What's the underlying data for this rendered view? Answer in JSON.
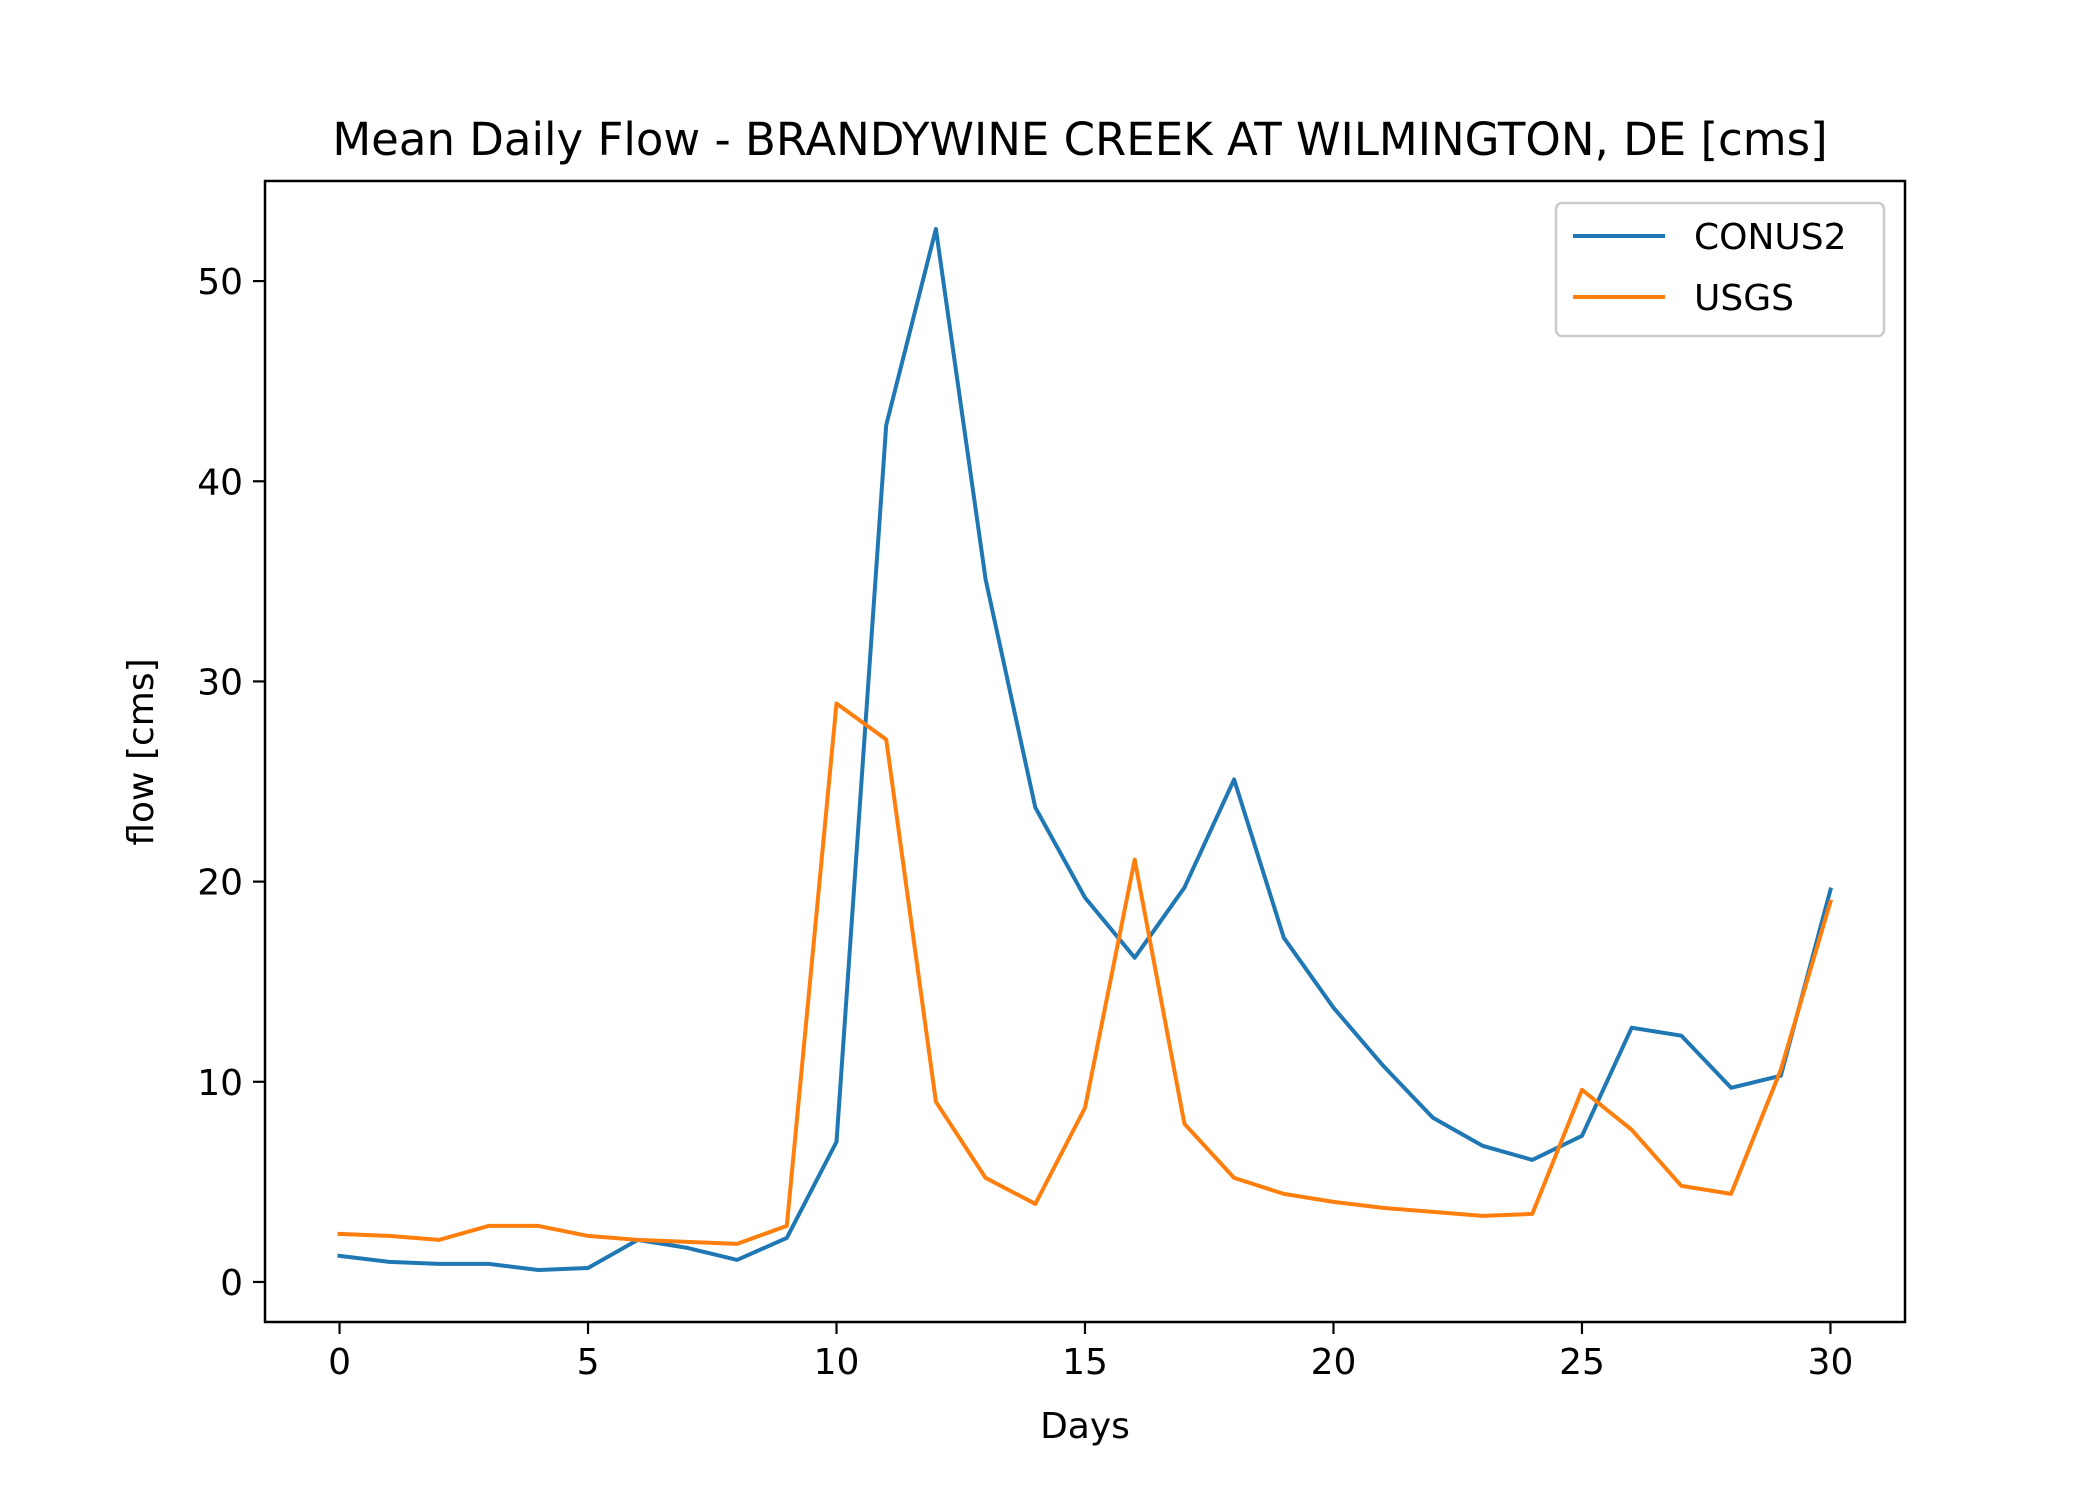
{
  "chart_data": {
    "type": "line",
    "title": "Mean Daily Flow - BRANDYWINE CREEK AT WILMINGTON, DE [cms]",
    "xlabel": "Days",
    "ylabel": "flow [cms]",
    "xlim": [
      -1.5,
      31.5
    ],
    "ylim": [
      -2,
      55
    ],
    "x_ticks": [
      0,
      5,
      10,
      15,
      20,
      25,
      30
    ],
    "y_ticks": [
      0,
      10,
      20,
      30,
      40,
      50
    ],
    "grid": false,
    "legend_position": "top-right",
    "x": [
      0,
      1,
      2,
      3,
      4,
      5,
      6,
      7,
      8,
      9,
      10,
      11,
      12,
      13,
      14,
      15,
      16,
      17,
      18,
      19,
      20,
      21,
      22,
      23,
      24,
      25,
      26,
      27,
      28,
      29,
      30
    ],
    "series": [
      {
        "name": "CONUS2",
        "color": "#1f77b4",
        "values": [
          1.3,
          1.0,
          0.9,
          0.9,
          0.6,
          0.7,
          2.1,
          1.7,
          1.1,
          2.2,
          7.0,
          42.8,
          52.6,
          35.1,
          23.7,
          19.2,
          16.2,
          19.7,
          25.1,
          17.2,
          13.7,
          10.8,
          8.2,
          6.8,
          6.1,
          7.3,
          12.7,
          12.3,
          9.7,
          10.3,
          19.6
        ]
      },
      {
        "name": "USGS",
        "color": "#ff7f0e",
        "values": [
          2.4,
          2.3,
          2.1,
          2.8,
          2.8,
          2.3,
          2.1,
          2.0,
          1.9,
          2.8,
          28.9,
          27.1,
          9.0,
          5.2,
          3.9,
          8.7,
          21.1,
          7.9,
          5.2,
          4.4,
          4.0,
          3.7,
          3.5,
          3.3,
          3.4,
          9.6,
          7.6,
          4.8,
          4.4,
          10.6,
          19.0
        ]
      }
    ]
  }
}
